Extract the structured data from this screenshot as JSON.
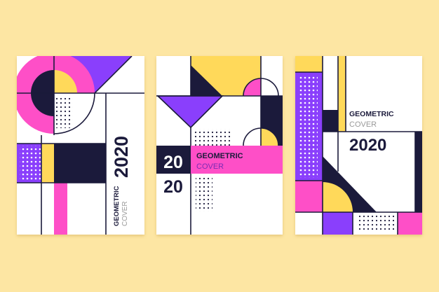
{
  "colors": {
    "background": "#fde6a3",
    "pink": "#fe4fc7",
    "purple": "#8a3ffc",
    "yellow": "#ffd95a",
    "navy": "#1b1a3b",
    "white": "#ffffff",
    "cover_text_gray": "#9a9a9a"
  },
  "covers": [
    {
      "title": "GEOMETRIC",
      "subtitle": "COVER",
      "year": "2020"
    },
    {
      "title": "GEOMETRIC",
      "subtitle": "COVER",
      "year_part1": "20",
      "year_part2": "20"
    },
    {
      "title": "GEOMETRIC",
      "subtitle": "COVER",
      "year": "2020"
    }
  ]
}
